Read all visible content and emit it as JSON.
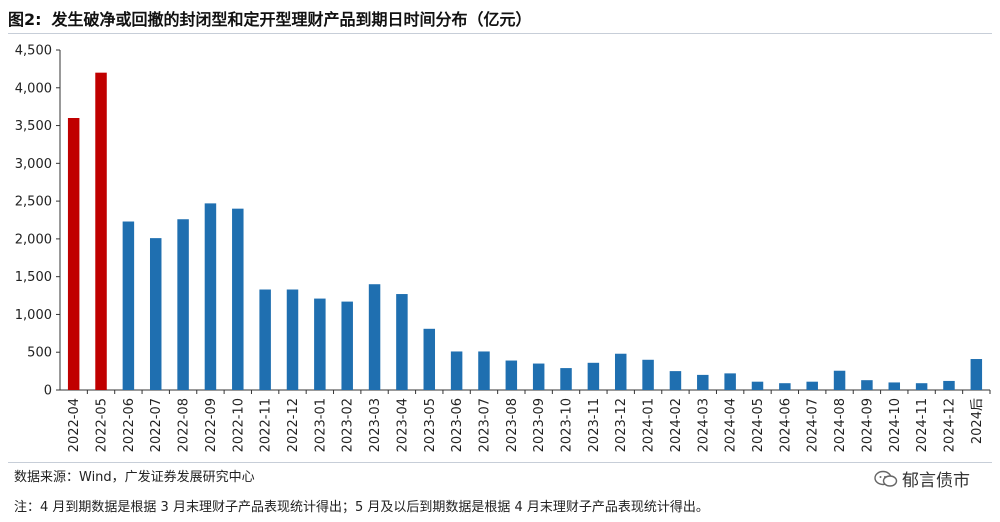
{
  "header": {
    "figure_label": "图2:",
    "title": "发生破净或回撤的封闭型和定开型理财产品到期日时间分布（亿元）"
  },
  "footer": {
    "source": "数据来源：Wind，广发证券发展研究中心",
    "note": "注：4 月到期数据是根据 3 月末理财子产品表现统计得出；5 月及以后到期数据是根据 4 月末理财子产品表现统计得出。",
    "brand": "郁言债市"
  },
  "colors": {
    "highlight": "#c00000",
    "primary": "#1f6fb0",
    "axis": "#333333"
  },
  "chart_data": {
    "type": "bar",
    "title": "",
    "xlabel": "",
    "ylabel": "",
    "ylim": [
      0,
      4500
    ],
    "yticks": [
      0,
      500,
      1000,
      1500,
      2000,
      2500,
      3000,
      3500,
      4000,
      4500
    ],
    "ytick_labels": [
      "0",
      "500",
      "1,000",
      "1,500",
      "2,000",
      "2,500",
      "3,000",
      "3,500",
      "4,000",
      "4,500"
    ],
    "grid": false,
    "legend": "none",
    "categories": [
      "2022-04",
      "2022-05",
      "2022-06",
      "2022-07",
      "2022-08",
      "2022-09",
      "2022-10",
      "2022-11",
      "2022-12",
      "2023-01",
      "2023-02",
      "2023-03",
      "2023-04",
      "2023-05",
      "2023-06",
      "2023-07",
      "2023-08",
      "2023-09",
      "2023-10",
      "2023-11",
      "2023-12",
      "2024-01",
      "2024-02",
      "2024-03",
      "2024-04",
      "2024-05",
      "2024-06",
      "2024-07",
      "2024-08",
      "2024-09",
      "2024-10",
      "2024-11",
      "2024-12",
      "2024后"
    ],
    "values": [
      3600,
      4200,
      2230,
      2010,
      2260,
      2470,
      2400,
      1330,
      1330,
      1210,
      1170,
      1400,
      1270,
      810,
      510,
      510,
      390,
      350,
      290,
      360,
      480,
      400,
      250,
      200,
      220,
      110,
      90,
      110,
      255,
      130,
      100,
      90,
      120,
      410
    ],
    "highlight_indices": [
      0,
      1
    ]
  }
}
